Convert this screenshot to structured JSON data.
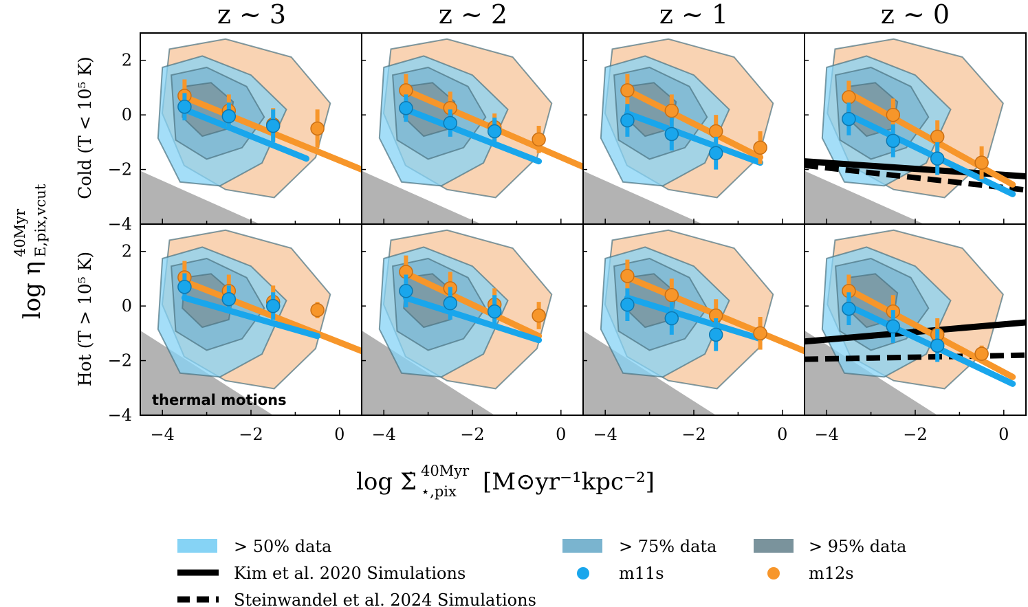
{
  "figure": {
    "ylabel_main": "log η",
    "ylabel_sup": "40Myr",
    "ylabel_sub": "E,pix,vcut",
    "xlabel_main": "log Σ̇",
    "xlabel_sup": "40Myr",
    "xlabel_sub": "⋆,pix",
    "xlabel_units": "[M⊙yr⁻¹kpc⁻²]",
    "row_labels": [
      "Cold (T < 10⁵ K)",
      "Hot (T > 10⁵ K)"
    ],
    "annotation": "thermal motions"
  },
  "colors": {
    "m11s": "#19a6ec",
    "m12s": "#f7962a",
    "fill50": "#86d3f5",
    "fill75": "#7ab4cf",
    "fill95": "#7a939c",
    "m12fill": "#f8ceab",
    "contour_edge": "#4a7280",
    "thermal": "#b3b3b3"
  },
  "legend": [
    {
      "key": "fill50",
      "label": "> 50% data",
      "kind": "patch"
    },
    {
      "key": "fill75",
      "label": "> 75% data",
      "kind": "patch"
    },
    {
      "key": "fill95",
      "label": "> 95% data",
      "kind": "patch"
    },
    {
      "key": "kim",
      "label": "Kim et al. 2020 Simulations",
      "kind": "solid"
    },
    {
      "key": "m11s",
      "label": "m11s",
      "kind": "dot"
    },
    {
      "key": "m12s",
      "label": "m12s",
      "kind": "dot"
    },
    {
      "key": "stein",
      "label": "Steinwandel et al. 2024 Simulations",
      "kind": "dashed"
    }
  ],
  "chart_data": {
    "type": "scatter",
    "title": "",
    "xlim": [
      -4.5,
      0.5
    ],
    "ylim": [
      -4,
      3
    ],
    "xticks": [
      -4,
      -2,
      0
    ],
    "xticklabels": [
      "−4",
      "−2",
      "0"
    ],
    "yticks": [
      -4,
      -2,
      0,
      2
    ],
    "yticklabels": [
      "−4",
      "−2",
      "0",
      "2"
    ],
    "columns": [
      "z ∼ 3",
      "z ∼ 2",
      "z ∼ 1",
      "z ∼ 0"
    ],
    "x_bins": [
      -3.5,
      -2.5,
      -1.5,
      -0.5
    ],
    "panels": [
      {
        "row": "cold",
        "col": 0,
        "m11s_points": [
          [
            -3.5,
            0.3
          ],
          [
            -2.5,
            -0.05
          ],
          [
            -1.5,
            -0.4
          ]
        ],
        "m11s_err": [
          0.5,
          0.5,
          0.6
        ],
        "m12s_points": [
          [
            -3.5,
            0.7
          ],
          [
            -2.5,
            0.15
          ],
          [
            -1.5,
            -0.35
          ],
          [
            -0.5,
            -0.5
          ]
        ],
        "m12s_err": [
          0.6,
          0.6,
          0.6,
          0.7
        ],
        "m11s_fit": [
          [
            -3.5,
            0.2
          ],
          [
            -0.75,
            -1.6
          ]
        ],
        "m12s_fit": [
          [
            -3.5,
            0.65
          ],
          [
            0.5,
            -2.0
          ]
        ]
      },
      {
        "row": "cold",
        "col": 1,
        "m11s_points": [
          [
            -3.5,
            0.25
          ],
          [
            -2.5,
            -0.3
          ],
          [
            -1.5,
            -0.6
          ]
        ],
        "m11s_err": [
          0.5,
          0.5,
          0.5
        ],
        "m12s_points": [
          [
            -3.5,
            0.9
          ],
          [
            -2.5,
            0.25
          ],
          [
            -1.5,
            -0.45
          ],
          [
            -0.5,
            -0.9
          ]
        ],
        "m12s_err": [
          0.6,
          0.6,
          0.5,
          0.5
        ],
        "m11s_fit": [
          [
            -3.5,
            0.2
          ],
          [
            -0.5,
            -1.7
          ]
        ],
        "m12s_fit": [
          [
            -3.5,
            0.9
          ],
          [
            0.5,
            -1.9
          ]
        ]
      },
      {
        "row": "cold",
        "col": 2,
        "m11s_points": [
          [
            -3.5,
            -0.2
          ],
          [
            -2.5,
            -0.7
          ],
          [
            -1.5,
            -1.4
          ]
        ],
        "m11s_err": [
          0.6,
          0.6,
          0.6
        ],
        "m12s_points": [
          [
            -3.5,
            0.9
          ],
          [
            -2.5,
            0.15
          ],
          [
            -1.5,
            -0.6
          ],
          [
            -0.5,
            -1.2
          ]
        ],
        "m12s_err": [
          0.6,
          0.6,
          0.6,
          0.6
        ],
        "m11s_fit": [
          [
            -3.5,
            0.05
          ],
          [
            -0.5,
            -1.75
          ]
        ],
        "m12s_fit": [
          [
            -3.5,
            0.9
          ],
          [
            -0.5,
            -1.55
          ]
        ]
      },
      {
        "row": "cold",
        "col": 3,
        "m11s_points": [
          [
            -3.5,
            -0.15
          ],
          [
            -2.5,
            -0.95
          ],
          [
            -1.5,
            -1.6
          ]
        ],
        "m11s_err": [
          0.6,
          0.6,
          0.6
        ],
        "m12s_points": [
          [
            -3.5,
            0.65
          ],
          [
            -2.5,
            0.0
          ],
          [
            -1.5,
            -0.8
          ],
          [
            -0.5,
            -1.75
          ]
        ],
        "m12s_err": [
          0.6,
          0.6,
          0.6,
          0.6
        ],
        "m11s_fit": [
          [
            -3.5,
            0.0
          ],
          [
            0.2,
            -2.9
          ]
        ],
        "m12s_fit": [
          [
            -3.5,
            0.8
          ],
          [
            0.2,
            -2.55
          ]
        ],
        "kim_line": [
          [
            -4.5,
            -1.7
          ],
          [
            0.5,
            -2.25
          ]
        ],
        "stein_line": [
          [
            -4.5,
            -1.85
          ],
          [
            0.5,
            -2.75
          ]
        ]
      },
      {
        "row": "hot",
        "col": 0,
        "m11s_points": [
          [
            -3.5,
            0.7
          ],
          [
            -2.5,
            0.25
          ],
          [
            -1.5,
            0.0
          ]
        ],
        "m11s_err": [
          0.5,
          0.5,
          0.5
        ],
        "m12s_points": [
          [
            -3.5,
            1.05
          ],
          [
            -2.5,
            0.55
          ],
          [
            -1.5,
            0.15
          ],
          [
            -0.5,
            -0.15
          ]
        ],
        "m12s_err": [
          0.6,
          0.6,
          0.6,
          0.3
        ],
        "m11s_fit": [
          [
            -3.5,
            0.3
          ],
          [
            -0.5,
            -1.1
          ]
        ],
        "m12s_fit": [
          [
            -3.5,
            0.9
          ],
          [
            0.5,
            -1.65
          ]
        ]
      },
      {
        "row": "hot",
        "col": 1,
        "m11s_points": [
          [
            -3.5,
            0.55
          ],
          [
            -2.5,
            0.1
          ],
          [
            -1.5,
            -0.2
          ]
        ],
        "m11s_err": [
          0.6,
          0.6,
          0.6
        ],
        "m12s_points": [
          [
            -3.5,
            1.25
          ],
          [
            -2.5,
            0.65
          ],
          [
            -1.5,
            0.05
          ],
          [
            -0.5,
            -0.35
          ]
        ],
        "m12s_err": [
          0.6,
          0.6,
          0.6,
          0.5
        ],
        "m11s_fit": [
          [
            -3.5,
            0.3
          ],
          [
            -0.5,
            -1.25
          ]
        ],
        "m12s_fit": [
          [
            -3.5,
            1.2
          ],
          [
            -0.5,
            -1.1
          ]
        ]
      },
      {
        "row": "hot",
        "col": 2,
        "m11s_points": [
          [
            -3.5,
            0.05
          ],
          [
            -2.5,
            -0.45
          ],
          [
            -1.5,
            -1.05
          ]
        ],
        "m11s_err": [
          0.6,
          0.6,
          0.6
        ],
        "m12s_points": [
          [
            -3.5,
            1.1
          ],
          [
            -2.5,
            0.4
          ],
          [
            -1.5,
            -0.35
          ],
          [
            -0.5,
            -1.0
          ]
        ],
        "m12s_err": [
          0.6,
          0.6,
          0.6,
          0.6
        ],
        "m11s_fit": [
          [
            -3.5,
            0.3
          ],
          [
            -0.5,
            -1.2
          ]
        ],
        "m12s_fit": [
          [
            -3.5,
            1.05
          ],
          [
            0.5,
            -1.65
          ]
        ]
      },
      {
        "row": "hot",
        "col": 3,
        "m11s_points": [
          [
            -3.5,
            -0.1
          ],
          [
            -2.5,
            -0.75
          ],
          [
            -1.5,
            -1.45
          ]
        ],
        "m11s_err": [
          0.6,
          0.6,
          0.6
        ],
        "m12s_points": [
          [
            -3.5,
            0.55
          ],
          [
            -2.5,
            -0.2
          ],
          [
            -1.5,
            -1.05
          ],
          [
            -0.5,
            -1.75
          ]
        ],
        "m12s_err": [
          0.6,
          0.6,
          0.6,
          0.3
        ],
        "m11s_fit": [
          [
            -3.5,
            0.0
          ],
          [
            0.2,
            -2.85
          ]
        ],
        "m12s_fit": [
          [
            -3.5,
            0.6
          ],
          [
            0.2,
            -2.6
          ]
        ],
        "kim_line": [
          [
            -4.5,
            -1.3
          ],
          [
            0.5,
            -0.6
          ]
        ],
        "stein_line": [
          [
            -4.5,
            -1.95
          ],
          [
            0.5,
            -1.8
          ]
        ]
      }
    ]
  }
}
